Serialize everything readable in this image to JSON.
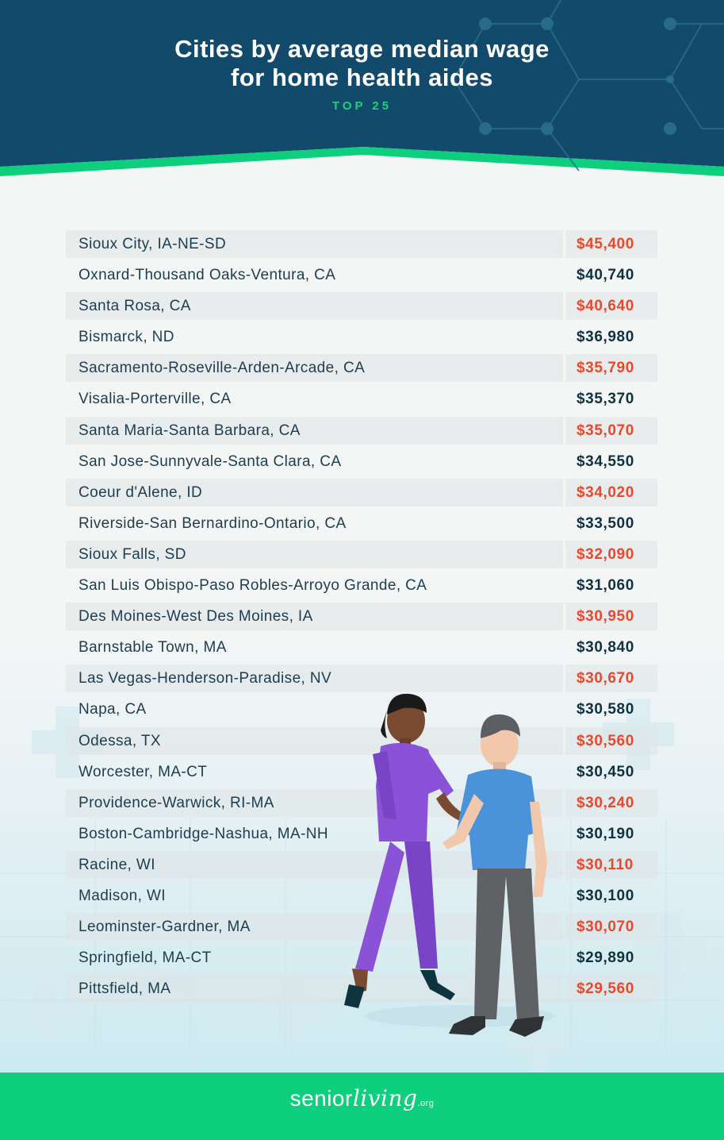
{
  "header": {
    "title": "Cities by average median wage\nfor home health aides",
    "subtitle": "TOP 25"
  },
  "colors": {
    "header_bg": "#124a6b",
    "accent_green": "#0ecf7d",
    "value_red": "#e8492c",
    "value_dark": "#10313f",
    "text_dark": "#1d3d4f"
  },
  "chart_data": {
    "type": "table",
    "title": "Cities by average median wage for home health aides",
    "subtitle": "TOP 25",
    "rows": [
      {
        "city": "Sioux City, IA-NE-SD",
        "wage": "$45,400",
        "value": 45400
      },
      {
        "city": "Oxnard-Thousand Oaks-Ventura, CA",
        "wage": "$40,740",
        "value": 40740
      },
      {
        "city": "Santa Rosa, CA",
        "wage": "$40,640",
        "value": 40640
      },
      {
        "city": "Bismarck, ND",
        "wage": "$36,980",
        "value": 36980
      },
      {
        "city": "Sacramento-Roseville-Arden-Arcade, CA",
        "wage": "$35,790",
        "value": 35790
      },
      {
        "city": "Visalia-Porterville, CA",
        "wage": "$35,370",
        "value": 35370
      },
      {
        "city": "Santa Maria-Santa Barbara, CA",
        "wage": "$35,070",
        "value": 35070
      },
      {
        "city": "San Jose-Sunnyvale-Santa Clara, CA",
        "wage": "$34,550",
        "value": 34550
      },
      {
        "city": "Coeur d'Alene, ID",
        "wage": "$34,020",
        "value": 34020
      },
      {
        "city": "Riverside-San Bernardino-Ontario, CA",
        "wage": "$33,500",
        "value": 33500
      },
      {
        "city": "Sioux Falls, SD",
        "wage": "$32,090",
        "value": 32090
      },
      {
        "city": "San Luis Obispo-Paso Robles-Arroyo Grande, CA",
        "wage": "$31,060",
        "value": 31060
      },
      {
        "city": "Des Moines-West Des Moines, IA",
        "wage": "$30,950",
        "value": 30950
      },
      {
        "city": "Barnstable Town, MA",
        "wage": "$30,840",
        "value": 30840
      },
      {
        "city": "Las Vegas-Henderson-Paradise, NV",
        "wage": "$30,670",
        "value": 30670
      },
      {
        "city": "Napa, CA",
        "wage": "$30,580",
        "value": 30580
      },
      {
        "city": "Odessa, TX",
        "wage": "$30,560",
        "value": 30560
      },
      {
        "city": "Worcester, MA-CT",
        "wage": "$30,450",
        "value": 30450
      },
      {
        "city": "Providence-Warwick, RI-MA",
        "wage": "$30,240",
        "value": 30240
      },
      {
        "city": "Boston-Cambridge-Nashua, MA-NH",
        "wage": "$30,190",
        "value": 30190
      },
      {
        "city": "Racine, WI",
        "wage": "$30,110",
        "value": 30110
      },
      {
        "city": "Madison, WI",
        "wage": "$30,100",
        "value": 30100
      },
      {
        "city": "Leominster-Gardner, MA",
        "wage": "$30,070",
        "value": 30070
      },
      {
        "city": "Springfield, MA-CT",
        "wage": "$29,890",
        "value": 29890
      },
      {
        "city": "Pittsfield, MA",
        "wage": "$29,560",
        "value": 29560
      }
    ]
  },
  "footer": {
    "logo_main": "senior",
    "logo_script": "living",
    "logo_tld": ".org"
  }
}
